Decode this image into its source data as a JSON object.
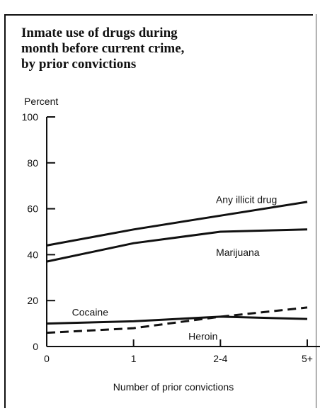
{
  "title": "Inmate use of drugs during\nmonth before current crime,\nby prior convictions",
  "chart_data": {
    "type": "line",
    "title": "Inmate use of drugs during month before current crime, by prior convictions",
    "ylabel": "Percent",
    "xlabel": "Number of prior convictions",
    "categories": [
      "0",
      "1",
      "2-4",
      "5+"
    ],
    "ylim": [
      0,
      100
    ],
    "yticks": [
      0,
      20,
      40,
      60,
      80,
      100
    ],
    "grid": false,
    "legend": "none",
    "series": [
      {
        "name": "Any illicit drug",
        "values": [
          44,
          51,
          57,
          63
        ],
        "style": "solid",
        "label_x": 2.3,
        "label_y": 62.5
      },
      {
        "name": "Marijuana",
        "values": [
          37,
          45,
          50,
          51
        ],
        "style": "solid",
        "label_x": 2.2,
        "label_y": 39.5
      },
      {
        "name": "Cocaine",
        "values": [
          10,
          11,
          13,
          12
        ],
        "style": "solid",
        "label_x": 0.5,
        "label_y": 13.5
      },
      {
        "name": "Heroin",
        "values": [
          6,
          8,
          13,
          17
        ],
        "style": "dashed",
        "label_x": 1.8,
        "label_y": 3
      }
    ]
  }
}
